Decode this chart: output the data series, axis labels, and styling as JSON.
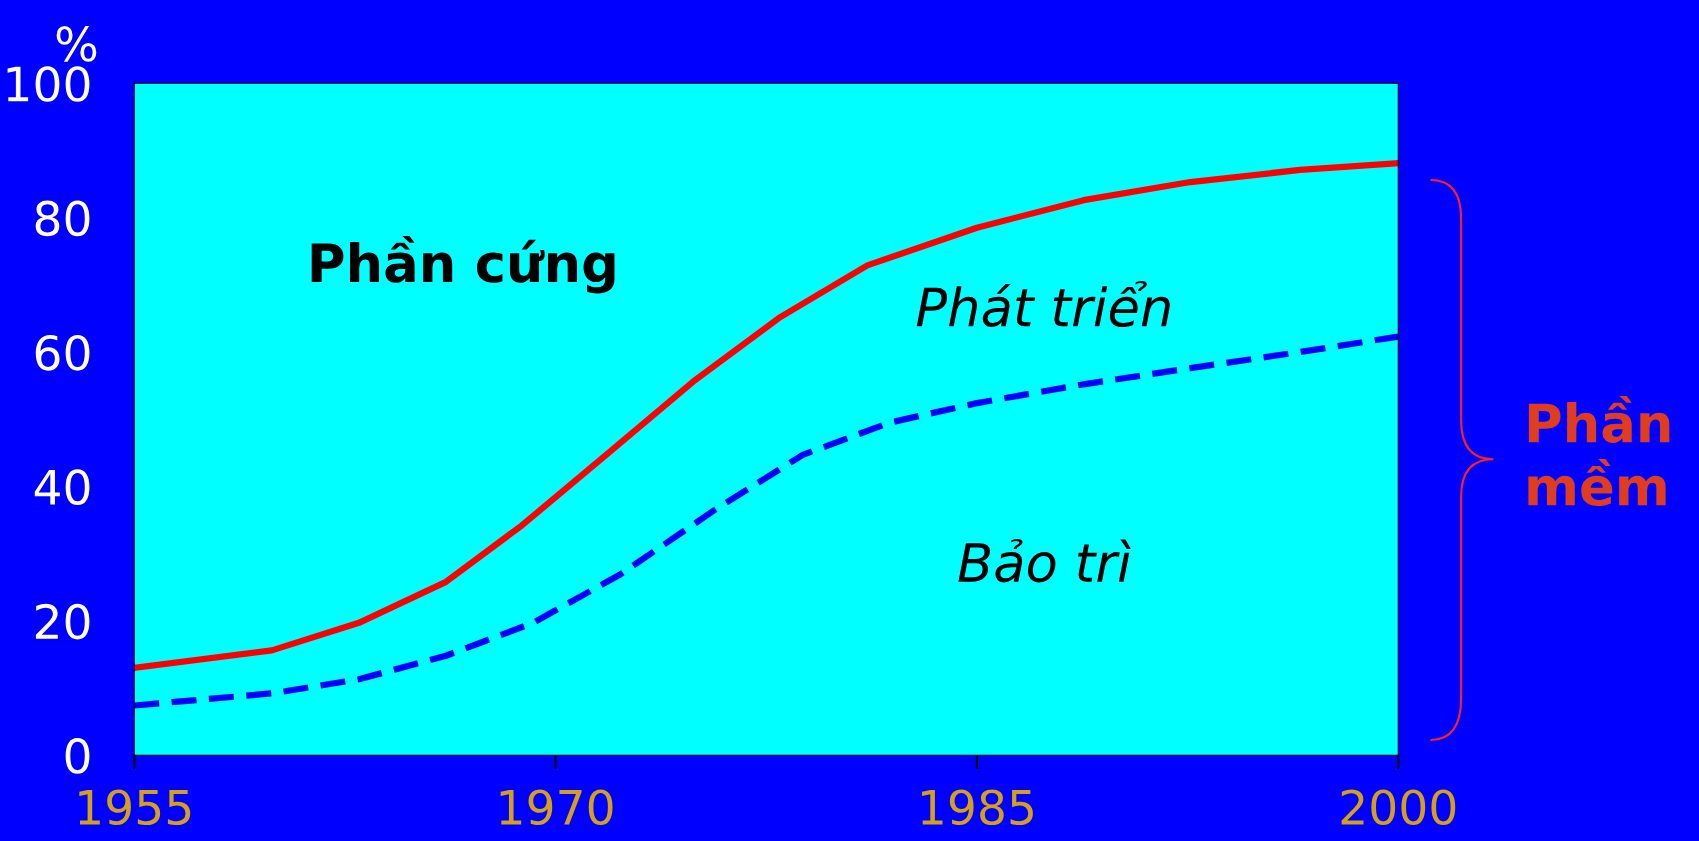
{
  "chart_data": {
    "type": "line",
    "ylabel": "%",
    "x": [
      1955,
      1959.9,
      1963,
      1966.1,
      1968.8,
      1971.8,
      1974.9,
      1978,
      1981.1,
      1985,
      1988.8,
      1992.6,
      1996.5,
      2000
    ],
    "series": [
      {
        "color": "#ff0000",
        "line_style": "solid",
        "values": [
          13,
          15.6,
          19.7,
          25.8,
          34.2,
          44.7,
          55.6,
          65.2,
          72.9,
          78.5,
          82.6,
          85.3,
          87.1,
          88.1
        ]
      },
      {
        "color": "#0000ff",
        "line_style": "dashed",
        "x": [
          1955,
          1959.9,
          1963,
          1966.1,
          1969.2,
          1972.3,
          1975.7,
          1978.8,
          1981.9,
          1985,
          1988.8,
          1992.6,
          1996.5,
          2000
        ],
        "values": [
          7.4,
          9.2,
          11.3,
          14.8,
          19.7,
          26.9,
          36.6,
          44.7,
          49.5,
          52.4,
          55.2,
          57.6,
          60,
          62.3
        ]
      }
    ],
    "xlim": [
      1955,
      2000
    ],
    "xticks": [
      1955,
      1970,
      1985,
      2000
    ],
    "ylim": [
      0,
      100
    ],
    "yticks": [
      0,
      20,
      40,
      60,
      80,
      100
    ],
    "annotations": [
      "Phần cứng",
      "Phát triển",
      "Bảo trì",
      "Phần mềm"
    ],
    "grid": false,
    "legend": false,
    "marker": "none"
  }
}
